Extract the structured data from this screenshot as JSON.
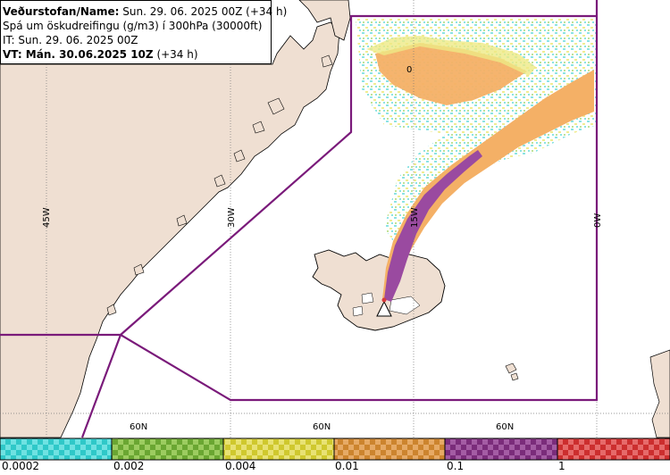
{
  "header": {
    "line1_label": "Veðurstofan/Name:",
    "line1_value": "Sun. 29. 06. 2025 00Z (+34 h)",
    "line2": "Spá um öskudreifingu (g/m3) í 300hPa (30000ft)",
    "line3": "IT: Sun. 29. 06. 2025 00Z",
    "line4_label": "VT: Mán. 30.06.2025 10Z",
    "line4_value": "(+34 h)"
  },
  "map": {
    "lon_labels": [
      "45W",
      "30W",
      "15W",
      "0W"
    ],
    "lat_labels": [
      "60N",
      "60N",
      "60N"
    ],
    "contour_label": "0"
  },
  "legend": {
    "ticks": [
      "0.0002",
      "0.002",
      "0.004",
      "0.01",
      "0.1",
      "1"
    ],
    "colors": [
      "#3fd0d0",
      "#7ab43c",
      "#d8d43c",
      "#d8923c",
      "#8a3c8a",
      "#d83c3c"
    ]
  }
}
